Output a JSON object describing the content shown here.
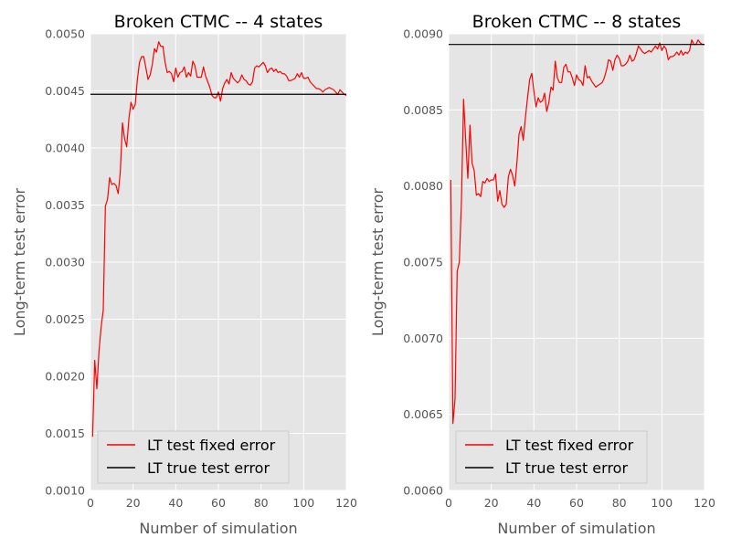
{
  "chart_data": [
    {
      "type": "line",
      "title": "Broken CTMC -- 4 states",
      "xlabel": "Number of simulation",
      "ylabel": "Long-term test error",
      "xlim": [
        0,
        120
      ],
      "ylim": [
        0.001,
        0.005
      ],
      "xticks": [
        0,
        20,
        40,
        60,
        80,
        100,
        120
      ],
      "xtick_labels": [
        "0",
        "20",
        "40",
        "60",
        "80",
        "100",
        "120"
      ],
      "yticks": [
        0.001,
        0.0015,
        0.002,
        0.0025,
        0.003,
        0.0035,
        0.004,
        0.0045,
        0.005
      ],
      "ytick_labels": [
        "0.0010",
        "0.0015",
        "0.0020",
        "0.0025",
        "0.0030",
        "0.0035",
        "0.0040",
        "0.0045",
        "0.0050"
      ],
      "grid": true,
      "legend_position": "lower-center",
      "series": [
        {
          "name": "LT test fixed error",
          "color": "#ff0000",
          "x": [
            1,
            2,
            3,
            4,
            5,
            6,
            7,
            8,
            9,
            10,
            11,
            12,
            13,
            14,
            15,
            16,
            17,
            18,
            19,
            20,
            21,
            22,
            23,
            24,
            25,
            26,
            27,
            28,
            29,
            30,
            31,
            32,
            33,
            34,
            35,
            36,
            37,
            38,
            39,
            40,
            41,
            42,
            43,
            44,
            45,
            46,
            47,
            48,
            49,
            50,
            51,
            52,
            53,
            54,
            55,
            56,
            57,
            58,
            59,
            60,
            61,
            62,
            63,
            64,
            65,
            66,
            67,
            68,
            69,
            70,
            71,
            72,
            73,
            74,
            75,
            76,
            77,
            78,
            79,
            80,
            81,
            82,
            83,
            84,
            85,
            86,
            87,
            88,
            89,
            90,
            91,
            92,
            93,
            94,
            95,
            96,
            97,
            98,
            99,
            100,
            101,
            102,
            103,
            104,
            105,
            106,
            107,
            108,
            109,
            110,
            111,
            112,
            113,
            114,
            115,
            116,
            117,
            118,
            119,
            120
          ],
          "y": [
            0.00147,
            0.00214,
            0.00189,
            0.00222,
            0.00243,
            0.00258,
            0.00349,
            0.00355,
            0.00374,
            0.00368,
            0.00369,
            0.00367,
            0.0036,
            0.00379,
            0.00422,
            0.00408,
            0.00401,
            0.00425,
            0.0044,
            0.00434,
            0.00438,
            0.0046,
            0.00475,
            0.0048,
            0.0048,
            0.0047,
            0.0046,
            0.00464,
            0.00473,
            0.00487,
            0.00484,
            0.00493,
            0.00489,
            0.00489,
            0.00475,
            0.00466,
            0.00467,
            0.00465,
            0.00458,
            0.0047,
            0.00462,
            0.00466,
            0.00467,
            0.00471,
            0.00462,
            0.00466,
            0.00463,
            0.00476,
            0.00472,
            0.00462,
            0.00462,
            0.00462,
            0.00471,
            0.00463,
            0.00458,
            0.00453,
            0.00446,
            0.00444,
            0.00444,
            0.00449,
            0.00441,
            0.00452,
            0.00457,
            0.0046,
            0.00456,
            0.00466,
            0.00461,
            0.00459,
            0.00457,
            0.00459,
            0.00464,
            0.0046,
            0.00459,
            0.00456,
            0.00455,
            0.00458,
            0.0047,
            0.00472,
            0.00471,
            0.00473,
            0.00475,
            0.00472,
            0.00466,
            0.00469,
            0.0047,
            0.00467,
            0.00469,
            0.00466,
            0.00467,
            0.00465,
            0.00465,
            0.00463,
            0.00459,
            0.00459,
            0.0046,
            0.00461,
            0.00465,
            0.00462,
            0.00466,
            0.00461,
            0.00461,
            0.00462,
            0.00458,
            0.00456,
            0.00454,
            0.00452,
            0.00452,
            0.00451,
            0.00449,
            0.00451,
            0.00452,
            0.00453,
            0.00452,
            0.00451,
            0.00449,
            0.00447,
            0.00451,
            0.00449,
            0.00447,
            0.00446
          ]
        },
        {
          "name": "LT true test error",
          "color": "#000000",
          "x": [
            0,
            120
          ],
          "y": [
            0.00447,
            0.00447
          ]
        }
      ]
    },
    {
      "type": "line",
      "title": "Broken CTMC -- 8 states",
      "xlabel": "Number of simulation",
      "ylabel": "Long-term test error",
      "xlim": [
        0,
        120
      ],
      "ylim": [
        0.006,
        0.009
      ],
      "xticks": [
        0,
        20,
        40,
        60,
        80,
        100,
        120
      ],
      "xtick_labels": [
        "0",
        "20",
        "40",
        "60",
        "80",
        "100",
        "120"
      ],
      "yticks": [
        0.006,
        0.0065,
        0.007,
        0.0075,
        0.008,
        0.0085,
        0.009
      ],
      "ytick_labels": [
        "0.0060",
        "0.0065",
        "0.0070",
        "0.0075",
        "0.0080",
        "0.0085",
        "0.0090"
      ],
      "grid": true,
      "legend_position": "lower-center",
      "series": [
        {
          "name": "LT test fixed error",
          "color": "#ff0000",
          "x": [
            1,
            2,
            3,
            4,
            5,
            6,
            7,
            8,
            9,
            10,
            11,
            12,
            13,
            14,
            15,
            16,
            17,
            18,
            19,
            20,
            21,
            22,
            23,
            24,
            25,
            26,
            27,
            28,
            29,
            30,
            31,
            32,
            33,
            34,
            35,
            36,
            37,
            38,
            39,
            40,
            41,
            42,
            43,
            44,
            45,
            46,
            47,
            48,
            49,
            50,
            51,
            52,
            53,
            54,
            55,
            56,
            57,
            58,
            59,
            60,
            61,
            62,
            63,
            64,
            65,
            66,
            67,
            68,
            69,
            70,
            71,
            72,
            73,
            74,
            75,
            76,
            77,
            78,
            79,
            80,
            81,
            82,
            83,
            84,
            85,
            86,
            87,
            88,
            89,
            90,
            91,
            92,
            93,
            94,
            95,
            96,
            97,
            98,
            99,
            100,
            101,
            102,
            103,
            104,
            105,
            106,
            107,
            108,
            109,
            110,
            111,
            112,
            113,
            114,
            115,
            116,
            117,
            118,
            119,
            120
          ],
          "y": [
            0.00804,
            0.00644,
            0.0066,
            0.00744,
            0.0075,
            0.0079,
            0.00857,
            0.0083,
            0.00805,
            0.0084,
            0.00815,
            0.0081,
            0.00794,
            0.00795,
            0.00793,
            0.00803,
            0.00802,
            0.00805,
            0.00803,
            0.00804,
            0.00804,
            0.00808,
            0.0079,
            0.00797,
            0.00788,
            0.00786,
            0.00788,
            0.00806,
            0.00811,
            0.00807,
            0.008,
            0.00815,
            0.00834,
            0.00839,
            0.0083,
            0.00845,
            0.00858,
            0.0087,
            0.00874,
            0.00862,
            0.00852,
            0.00858,
            0.00855,
            0.00856,
            0.00861,
            0.00849,
            0.00855,
            0.00865,
            0.00863,
            0.00882,
            0.00871,
            0.00868,
            0.00868,
            0.00878,
            0.0088,
            0.00875,
            0.00875,
            0.00871,
            0.00866,
            0.00873,
            0.0087,
            0.00869,
            0.00866,
            0.00879,
            0.00871,
            0.00872,
            0.00869,
            0.00867,
            0.00865,
            0.00866,
            0.00867,
            0.00868,
            0.00871,
            0.00876,
            0.00883,
            0.00882,
            0.00876,
            0.00883,
            0.00886,
            0.00884,
            0.00879,
            0.00879,
            0.0088,
            0.00882,
            0.00886,
            0.00882,
            0.00883,
            0.00887,
            0.00892,
            0.0089,
            0.00888,
            0.00887,
            0.00888,
            0.00889,
            0.00888,
            0.0089,
            0.00892,
            0.0089,
            0.00894,
            0.00889,
            0.00892,
            0.0089,
            0.00883,
            0.00885,
            0.00885,
            0.00886,
            0.00888,
            0.00886,
            0.00889,
            0.00886,
            0.00888,
            0.00887,
            0.00889,
            0.00896,
            0.00893,
            0.00893,
            0.00896,
            0.00894,
            0.00893,
            0.00893
          ]
        },
        {
          "name": "LT true test error",
          "color": "#000000",
          "x": [
            0,
            120
          ],
          "y": [
            0.00893,
            0.00893
          ]
        }
      ]
    }
  ]
}
